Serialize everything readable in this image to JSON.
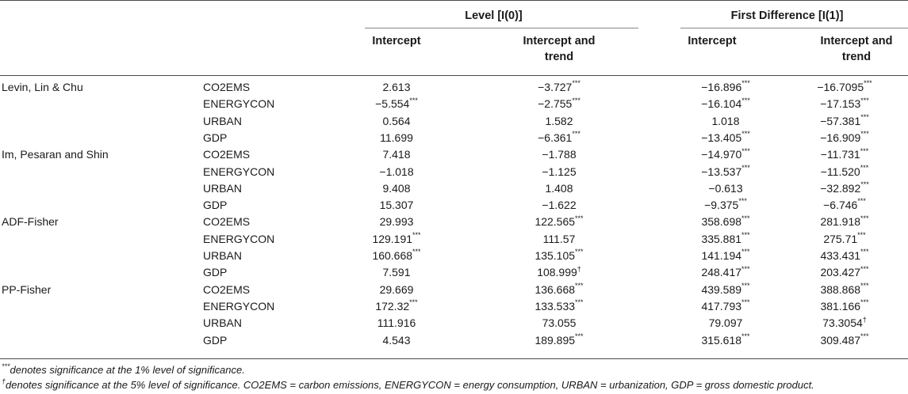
{
  "table": {
    "group_headers": [
      "Level [I(0)]",
      "First Difference [I(1)]"
    ],
    "sub_headers": [
      "Intercept",
      "Intercept and trend",
      "Intercept",
      "Intercept and trend"
    ],
    "rows": [
      {
        "test": "Levin, Lin & Chu",
        "var": "CO2EMS",
        "c1": [
          "2.613",
          ""
        ],
        "c2": [
          "−3.727",
          "***"
        ],
        "c3": [
          "−16.896",
          "***"
        ],
        "c4": [
          "−16.7095",
          "***"
        ]
      },
      {
        "test": "",
        "var": "ENERGYCON",
        "c1": [
          "−5.554",
          "***"
        ],
        "c2": [
          "−2.755",
          "***"
        ],
        "c3": [
          "−16.104",
          "***"
        ],
        "c4": [
          "−17.153",
          "***"
        ]
      },
      {
        "test": "",
        "var": "URBAN",
        "c1": [
          "0.564",
          ""
        ],
        "c2": [
          "1.582",
          ""
        ],
        "c3": [
          "1.018",
          ""
        ],
        "c4": [
          "−57.381",
          "***"
        ]
      },
      {
        "test": "",
        "var": "GDP",
        "c1": [
          "11.699",
          ""
        ],
        "c2": [
          "−6.361",
          "***"
        ],
        "c3": [
          "−13.405",
          "***"
        ],
        "c4": [
          "−16.909",
          "***"
        ]
      },
      {
        "test": "Im, Pesaran and Shin",
        "var": "CO2EMS",
        "c1": [
          "7.418",
          ""
        ],
        "c2": [
          "−1.788",
          ""
        ],
        "c3": [
          "−14.970",
          "***"
        ],
        "c4": [
          "−11.731",
          "***"
        ]
      },
      {
        "test": "",
        "var": "ENERGYCON",
        "c1": [
          "−1.018",
          ""
        ],
        "c2": [
          "−1.125",
          ""
        ],
        "c3": [
          "−13.537",
          "***"
        ],
        "c4": [
          "−11.520",
          "***"
        ]
      },
      {
        "test": "",
        "var": "URBAN",
        "c1": [
          "9.408",
          ""
        ],
        "c2": [
          "1.408",
          ""
        ],
        "c3": [
          "−0.613",
          ""
        ],
        "c4": [
          "−32.892",
          "***"
        ]
      },
      {
        "test": "",
        "var": "GDP",
        "c1": [
          "15.307",
          ""
        ],
        "c2": [
          "−1.622",
          ""
        ],
        "c3": [
          "−9.375",
          "***"
        ],
        "c4": [
          "−6.746",
          "***"
        ]
      },
      {
        "test": "ADF-Fisher",
        "var": "CO2EMS",
        "c1": [
          "29.993",
          ""
        ],
        "c2": [
          "122.565",
          "***"
        ],
        "c3": [
          "358.698",
          "***"
        ],
        "c4": [
          "281.918",
          "***"
        ]
      },
      {
        "test": "",
        "var": "ENERGYCON",
        "c1": [
          "129.191",
          "***"
        ],
        "c2": [
          "111.57",
          ""
        ],
        "c3": [
          "335.881",
          "***"
        ],
        "c4": [
          "275.71",
          "***"
        ]
      },
      {
        "test": "",
        "var": "URBAN",
        "c1": [
          "160.668",
          "***"
        ],
        "c2": [
          "135.105",
          "***"
        ],
        "c3": [
          "141.194",
          "***"
        ],
        "c4": [
          "433.431",
          "***"
        ]
      },
      {
        "test": "",
        "var": "GDP",
        "c1": [
          "7.591",
          ""
        ],
        "c2": [
          "108.999",
          "†"
        ],
        "c3": [
          "248.417",
          "***"
        ],
        "c4": [
          "203.427",
          "***"
        ]
      },
      {
        "test": "PP-Fisher",
        "var": "CO2EMS",
        "c1": [
          "29.669",
          ""
        ],
        "c2": [
          "136.668",
          "***"
        ],
        "c3": [
          "439.589",
          "***"
        ],
        "c4": [
          "388.868",
          "***"
        ]
      },
      {
        "test": "",
        "var": "ENERGYCON",
        "c1": [
          "172.32",
          "***"
        ],
        "c2": [
          "133.533",
          "***"
        ],
        "c3": [
          "417.793",
          "***"
        ],
        "c4": [
          "381.166",
          "***"
        ]
      },
      {
        "test": "",
        "var": "URBAN",
        "c1": [
          "111.916",
          ""
        ],
        "c2": [
          "73.055",
          ""
        ],
        "c3": [
          "79.097",
          ""
        ],
        "c4": [
          "73.3054",
          "†"
        ]
      },
      {
        "test": "",
        "var": "GDP",
        "c1": [
          "4.543",
          ""
        ],
        "c2": [
          "189.895",
          "***"
        ],
        "c3": [
          "315.618",
          "***"
        ],
        "c4": [
          "309.487",
          "***"
        ]
      }
    ]
  },
  "footnotes": [
    {
      "mark": "***",
      "text": "denotes significance at the 1% level of significance."
    },
    {
      "mark": "†",
      "text": "denotes significance at the 5% level of significance. CO2EMS = carbon emissions, ENERGYCON = energy consumption, URBAN = urbanization, GDP = gross domestic product."
    }
  ]
}
